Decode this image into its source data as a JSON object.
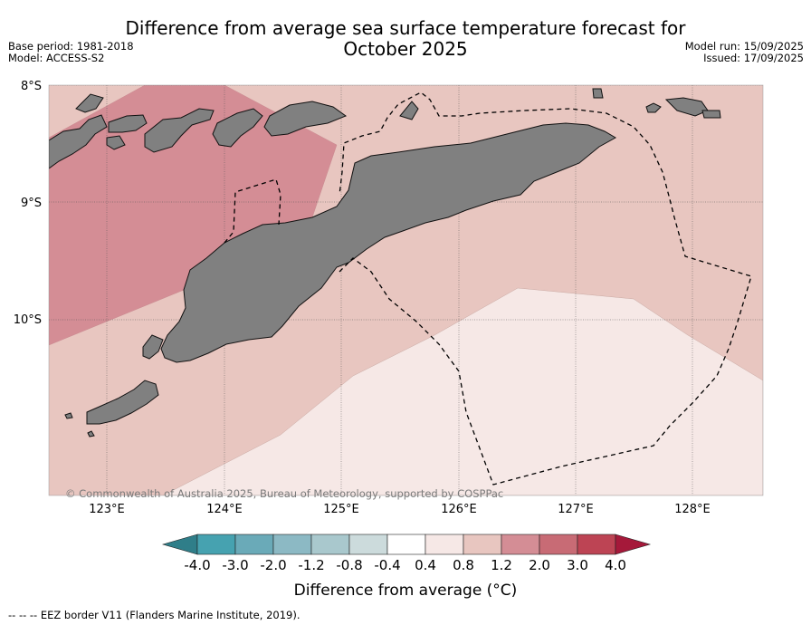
{
  "title_line1": "Difference from average sea surface temperature forecast for",
  "title_line2": "October 2025",
  "meta_left": {
    "base_period": "Base period: 1981-2018",
    "model": "Model: ACCESS-S2"
  },
  "meta_right": {
    "model_run": "Model run: 15/09/2025",
    "issued": "Issued: 17/09/2025"
  },
  "latitude_labels": [
    "8°S",
    "9°S",
    "10°S"
  ],
  "longitude_labels": [
    "123°E",
    "124°E",
    "125°E",
    "126°E",
    "127°E",
    "128°E"
  ],
  "copyright": "© Commonwealth of Australia 2025, Bureau of Meteorology, supported by COSPPac",
  "colorbar": {
    "ticks": [
      "-4.0",
      "-3.0",
      "-2.0",
      "-1.2",
      "-0.8",
      "-0.4",
      "0.4",
      "0.8",
      "1.2",
      "2.0",
      "3.0",
      "4.0"
    ],
    "colors": [
      "#2f7e89",
      "#46a2b0",
      "#6aaab8",
      "#8cb9c4",
      "#a9c8cd",
      "#ccdbdc",
      "#ffffff",
      "#f6e8e6",
      "#e8c6c0",
      "#d48d95",
      "#c86b75",
      "#bd4454",
      "#a5193a"
    ],
    "title": "Difference from average ($^\\circ$C)",
    "title_display": "Difference from average (°C)"
  },
  "footer": "--  --  -- EEZ border V11 (Flanders Marine Institute, 2019).",
  "colors": {
    "land": "#808080",
    "anomaly_0_4_to_0_8": "#f6e8e6",
    "anomaly_0_8_to_1_2": "#e8c6c0",
    "anomaly_1_2_to_2_0": "#d48d95"
  }
}
